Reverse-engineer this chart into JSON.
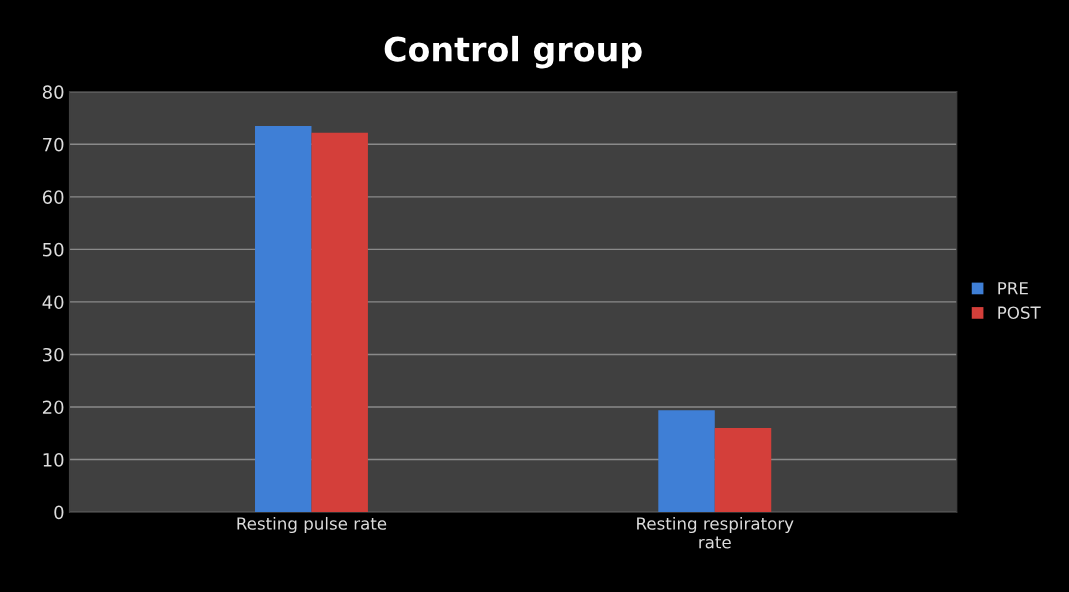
{
  "chart_data": {
    "type": "bar",
    "title": "Control group",
    "categories": [
      "Resting pulse rate",
      "Resting respiratory\nrate"
    ],
    "series": [
      {
        "name": "PRE",
        "color": "#3f7fd6",
        "values": [
          73.5,
          19.4
        ]
      },
      {
        "name": "POST",
        "color": "#d43f3a",
        "values": [
          72.2,
          16
        ]
      }
    ],
    "ylim": [
      0,
      80
    ],
    "yticks": [
      0,
      10,
      20,
      30,
      40,
      50,
      60,
      70,
      80
    ],
    "grid": "y",
    "legend": "right"
  }
}
